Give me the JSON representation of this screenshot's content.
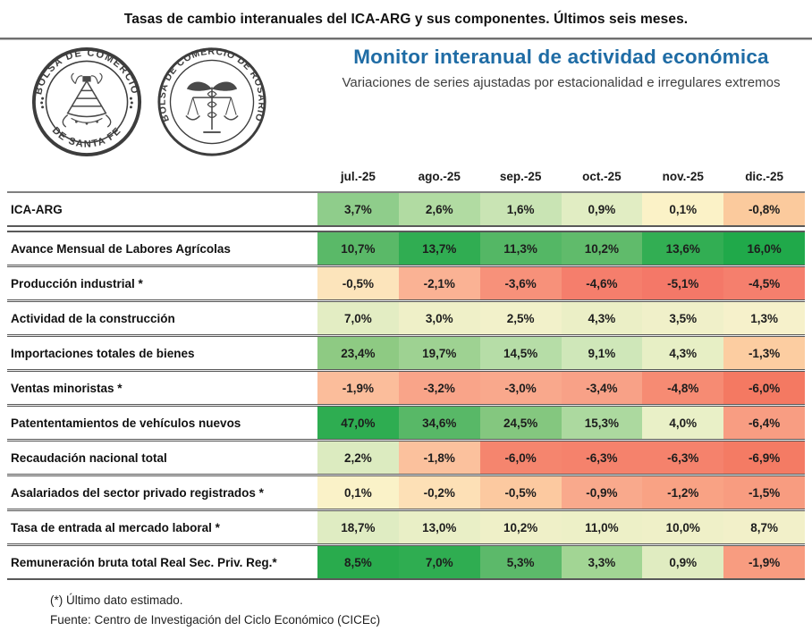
{
  "page": {
    "title": "Tasas de cambio interanuales del ICA-ARG y sus componentes. Últimos seis meses."
  },
  "header": {
    "monitor_title": "Monitor interanual de actividad económica",
    "monitor_title_color": "#1f6ca5",
    "subtitle": "Variaciones de series ajustadas por estacionalidad e irregulares extremos"
  },
  "logos": {
    "santa_fe": {
      "text_top": "BOLSA DE COMERCIO",
      "text_bottom": "DE SANTA FE"
    },
    "rosario": {
      "text_around": "BOLSA DE COMERCIO DE ROSARIO"
    }
  },
  "table": {
    "months": [
      "jul.-25",
      "ago.-25",
      "sep.-25",
      "oct.-25",
      "nov.-25",
      "dic.-25"
    ],
    "rows": [
      {
        "label": "ICA-ARG",
        "values": [
          "3,7%",
          "2,6%",
          "1,6%",
          "0,9%",
          "0,1%",
          "-0,8%"
        ],
        "colors": [
          "#8fcd8b",
          "#b1dba2",
          "#c9e4b4",
          "#e1edc3",
          "#fbf2c7",
          "#fbca9d"
        ]
      },
      {
        "label": "Avance Mensual de Labores Agrícolas",
        "values": [
          "10,7%",
          "13,7%",
          "11,3%",
          "10,2%",
          "13,6%",
          "16,0%"
        ],
        "colors": [
          "#5ab968",
          "#30ad52",
          "#54b765",
          "#60bb6b",
          "#32ae53",
          "#20a94a"
        ]
      },
      {
        "label": "Producción industrial *",
        "values": [
          "-0,5%",
          "-2,1%",
          "-3,6%",
          "-4,6%",
          "-5,1%",
          "-4,5%"
        ],
        "colors": [
          "#fce4bb",
          "#fab294",
          "#f7917a",
          "#f57e6c",
          "#f47868",
          "#f57f6d"
        ]
      },
      {
        "label": "Actividad de la construcción",
        "values": [
          "7,0%",
          "3,0%",
          "2,5%",
          "4,3%",
          "3,5%",
          "1,3%"
        ],
        "colors": [
          "#e3edc3",
          "#eff0c8",
          "#f2f1ca",
          "#ebefc6",
          "#f0f0c9",
          "#f6f1cb"
        ]
      },
      {
        "label": "Importaciones totales de bienes",
        "values": [
          "23,4%",
          "19,7%",
          "14,5%",
          "9,1%",
          "4,3%",
          "-1,3%"
        ],
        "colors": [
          "#8eca83",
          "#9ed292",
          "#b6dda7",
          "#cfe7b9",
          "#e7efc5",
          "#fccda1"
        ]
      },
      {
        "label": "Ventas minoristas *",
        "values": [
          "-1,9%",
          "-3,2%",
          "-3,0%",
          "-3,4%",
          "-4,8%",
          "-6,0%"
        ],
        "colors": [
          "#fbbd9b",
          "#f9a489",
          "#f9a88c",
          "#f8a187",
          "#f68b73",
          "#f47962"
        ]
      },
      {
        "label": "Patententamientos de vehículos nuevos",
        "values": [
          "47,0%",
          "34,6%",
          "24,5%",
          "15,3%",
          "4,0%",
          "-6,4%"
        ],
        "colors": [
          "#2ead51",
          "#58b867",
          "#84c77f",
          "#acd99f",
          "#e9f0c7",
          "#f89d82"
        ]
      },
      {
        "label": "Recaudación nacional total",
        "values": [
          "2,2%",
          "-1,8%",
          "-6,0%",
          "-6,3%",
          "-6,3%",
          "-6,9%"
        ],
        "colors": [
          "#dcebc0",
          "#fbc19d",
          "#f5856e",
          "#f5826c",
          "#f5826c",
          "#f47b64"
        ]
      },
      {
        "label": "Asalariados del sector privado registrados *",
        "values": [
          "0,1%",
          "-0,2%",
          "-0,5%",
          "-0,9%",
          "-1,2%",
          "-1,5%"
        ],
        "colors": [
          "#faf2c8",
          "#fde0b6",
          "#fcc9a0",
          "#f9a98c",
          "#f9a284",
          "#f89c80"
        ]
      },
      {
        "label": "Tasa de entrada al mercado laboral *",
        "values": [
          "18,7%",
          "13,0%",
          "10,2%",
          "11,0%",
          "10,0%",
          "8,7%"
        ],
        "colors": [
          "#dfecc2",
          "#e9efc6",
          "#eff0c8",
          "#edf0c7",
          "#eff0c8",
          "#f2f0c9"
        ]
      },
      {
        "label": "Remuneración bruta total Real Sec. Priv. Reg.*",
        "values": [
          "8,5%",
          "7,0%",
          "5,3%",
          "3,3%",
          "0,9%",
          "-1,9%"
        ],
        "colors": [
          "#29ab4d",
          "#2fad51",
          "#5cb96a",
          "#a2d594",
          "#e0ecc1",
          "#f89c80"
        ]
      }
    ]
  },
  "footnotes": {
    "estimate_note": "(*) Último dato estimado.",
    "source_note": "Fuente: Centro de Investigación del Ciclo Económico (CICEc)"
  },
  "chart_data": {
    "type": "heatmap",
    "title": "Tasas de cambio interanuales del ICA-ARG y sus componentes. Últimos seis meses.",
    "subtitle": "Variaciones de series ajustadas por estacionalidad e irregulares extremos",
    "unit": "%",
    "x": [
      "jul.-25",
      "ago.-25",
      "sep.-25",
      "oct.-25",
      "nov.-25",
      "dic.-25"
    ],
    "series": [
      {
        "name": "ICA-ARG",
        "values": [
          3.7,
          2.6,
          1.6,
          0.9,
          0.1,
          -0.8
        ]
      },
      {
        "name": "Avance Mensual de Labores Agrícolas",
        "values": [
          10.7,
          13.7,
          11.3,
          10.2,
          13.6,
          16.0
        ]
      },
      {
        "name": "Producción industrial *",
        "values": [
          -0.5,
          -2.1,
          -3.6,
          -4.6,
          -5.1,
          -4.5
        ]
      },
      {
        "name": "Actividad de la construcción",
        "values": [
          7.0,
          3.0,
          2.5,
          4.3,
          3.5,
          1.3
        ]
      },
      {
        "name": "Importaciones totales de bienes",
        "values": [
          23.4,
          19.7,
          14.5,
          9.1,
          4.3,
          -1.3
        ]
      },
      {
        "name": "Ventas minoristas *",
        "values": [
          -1.9,
          -3.2,
          -3.0,
          -3.4,
          -4.8,
          -6.0
        ]
      },
      {
        "name": "Patententamientos de vehículos nuevos",
        "values": [
          47.0,
          34.6,
          24.5,
          15.3,
          4.0,
          -6.4
        ]
      },
      {
        "name": "Recaudación nacional total",
        "values": [
          2.2,
          -1.8,
          -6.0,
          -6.3,
          -6.3,
          -6.9
        ]
      },
      {
        "name": "Asalariados del sector privado registrados *",
        "values": [
          0.1,
          -0.2,
          -0.5,
          -0.9,
          -1.2,
          -1.5
        ]
      },
      {
        "name": "Tasa de entrada al mercado laboral *",
        "values": [
          18.7,
          13.0,
          10.2,
          11.0,
          10.0,
          8.7
        ]
      },
      {
        "name": "Remuneración bruta total Real Sec. Priv. Reg.*",
        "values": [
          8.5,
          7.0,
          5.3,
          3.3,
          0.9,
          -1.9
        ]
      }
    ],
    "color_scale": "red (negative) → pale yellow (near zero) → green (positive), scaled per row",
    "legend": "none",
    "grid": "table borders between rows"
  }
}
